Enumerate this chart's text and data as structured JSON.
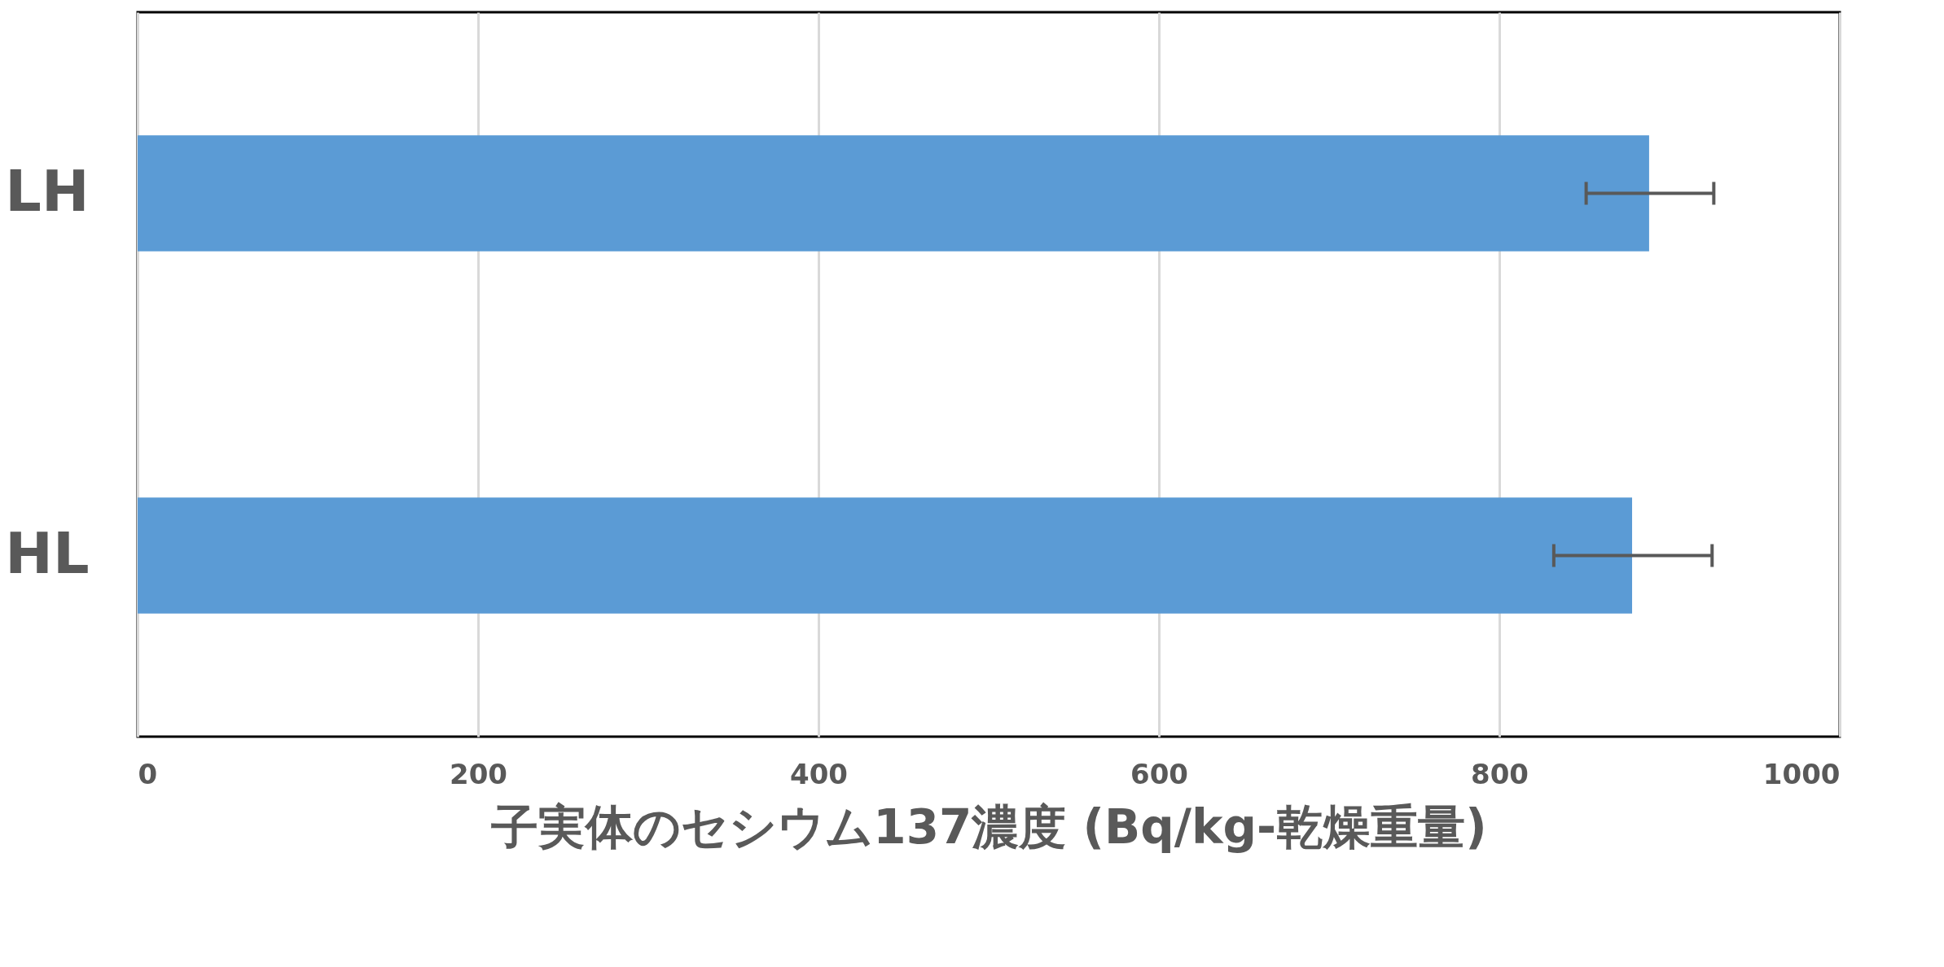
{
  "chart_data": {
    "type": "bar",
    "orientation": "horizontal",
    "categories": [
      "LH",
      "HL"
    ],
    "values": [
      888,
      878
    ],
    "errors": [
      [
        851,
        926
      ],
      [
        832,
        925
      ]
    ],
    "color": "#5b9bd5",
    "xlabel": "子実体のセシウム137濃度 (Bq/kg-乾燥重量)",
    "xlim": [
      0,
      1000
    ],
    "xticks": [
      0,
      200,
      400,
      600,
      800,
      1000
    ],
    "grid": "x"
  }
}
